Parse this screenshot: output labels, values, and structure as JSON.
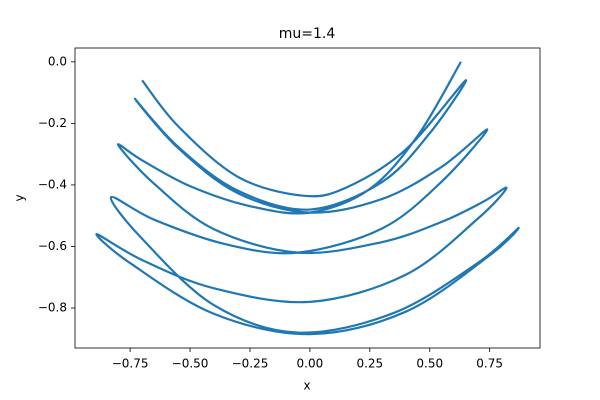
{
  "chart_data": {
    "type": "line",
    "title": "mu=1.4",
    "x_label": "x",
    "y_label": "y",
    "color": "#1f77b4",
    "x": [
      0.63,
      0.45,
      0.25,
      0,
      -0.25,
      -0.5,
      -0.7,
      -0.8,
      -0.65,
      -0.4,
      -0.05,
      0.3,
      0.55,
      0.72,
      0.82,
      0.7,
      0.4,
      0,
      -0.4,
      -0.7,
      -0.89,
      -0.75,
      -0.4,
      0,
      0.4,
      0.75,
      0.87,
      0.7,
      0.35,
      -0.05,
      -0.4,
      -0.7,
      -0.83,
      -0.65,
      -0.35,
      -0.05,
      0.3,
      0.55,
      0.74,
      0.55,
      0.3,
      0,
      -0.3,
      -0.55,
      -0.73,
      -0.55,
      -0.3,
      0,
      0.3,
      0.5,
      0.65,
      0.4,
      0.15,
      -0.03,
      -0.3,
      -0.55,
      -0.7
    ],
    "values": [
      0,
      -0.24,
      -0.413,
      -0.49,
      -0.469,
      -0.404,
      -0.32,
      -0.27,
      -0.396,
      -0.544,
      -0.62,
      -0.586,
      -0.52,
      -0.456,
      -0.41,
      -0.51,
      -0.692,
      -0.78,
      -0.736,
      -0.644,
      -0.56,
      -0.654,
      -0.819,
      -0.885,
      -0.812,
      -0.629,
      -0.54,
      -0.654,
      -0.816,
      -0.88,
      -0.791,
      -0.575,
      -0.44,
      -0.513,
      -0.593,
      -0.62,
      -0.542,
      -0.389,
      -0.22,
      -0.341,
      -0.446,
      -0.49,
      -0.427,
      -0.28,
      -0.12,
      -0.276,
      -0.419,
      -0.48,
      -0.391,
      -0.232,
      -0.06,
      -0.285,
      -0.409,
      -0.435,
      -0.374,
      -0.209,
      -0.06
    ],
    "xlim": [
      -0.98,
      0.96
    ],
    "ylim": [
      -0.93,
      0.045
    ],
    "xticks": [
      {
        "value": -0.75,
        "label": "−0.75"
      },
      {
        "value": -0.5,
        "label": "−0.50"
      },
      {
        "value": -0.25,
        "label": "−0.25"
      },
      {
        "value": 0,
        "label": "0.00"
      },
      {
        "value": 0.25,
        "label": "0.25"
      },
      {
        "value": 0.5,
        "label": "0.50"
      },
      {
        "value": 0.75,
        "label": "0.75"
      }
    ],
    "yticks": [
      {
        "value": 0,
        "label": "0.0"
      },
      {
        "value": -0.2,
        "label": "−0.2"
      },
      {
        "value": -0.4,
        "label": "−0.4"
      },
      {
        "value": -0.6,
        "label": "−0.6"
      },
      {
        "value": -0.8,
        "label": "−0.8"
      }
    ]
  }
}
